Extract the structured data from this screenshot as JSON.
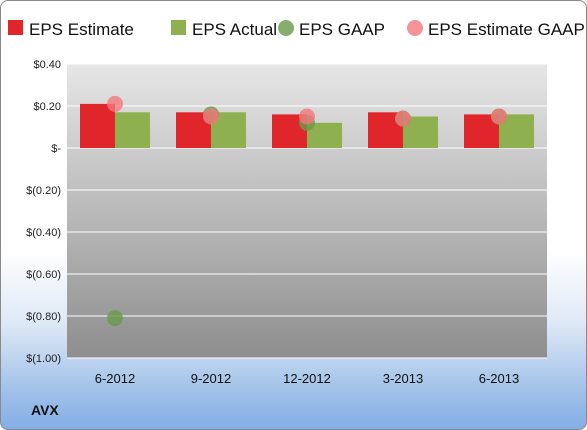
{
  "chart_data": {
    "type": "bar",
    "categories": [
      "6-2012",
      "9-2012",
      "12-2012",
      "3-2013",
      "6-2013"
    ],
    "series": [
      {
        "name": "EPS Estimate",
        "kind": "bar",
        "color": "#e0262b",
        "values": [
          0.21,
          0.17,
          0.16,
          0.17,
          0.16
        ]
      },
      {
        "name": "EPS Actual",
        "kind": "bar",
        "color": "#8fb04e",
        "values": [
          0.17,
          0.17,
          0.12,
          0.15,
          0.16
        ]
      },
      {
        "name": "EPS GAAP",
        "kind": "scatter",
        "color": "#6a9a4a",
        "values": [
          -0.81,
          0.16,
          0.12,
          0.14,
          0.15
        ]
      },
      {
        "name": "EPS Estimate GAAP",
        "kind": "scatter",
        "color": "#f2787c",
        "values": [
          0.21,
          0.15,
          0.15,
          0.14,
          0.15
        ]
      }
    ],
    "ylim": [
      -1.0,
      0.4
    ],
    "yticks": [
      0.4,
      0.2,
      0,
      -0.2,
      -0.4,
      -0.6,
      -0.8,
      -1.0
    ],
    "ytick_labels": [
      "$0.40",
      "$0.20",
      "$-",
      "$(0.20)",
      "$(0.40)",
      "$(0.60)",
      "$(0.80)",
      "$(1.00)"
    ],
    "grid": true,
    "legend_position": "top",
    "ticker": "AVX"
  }
}
